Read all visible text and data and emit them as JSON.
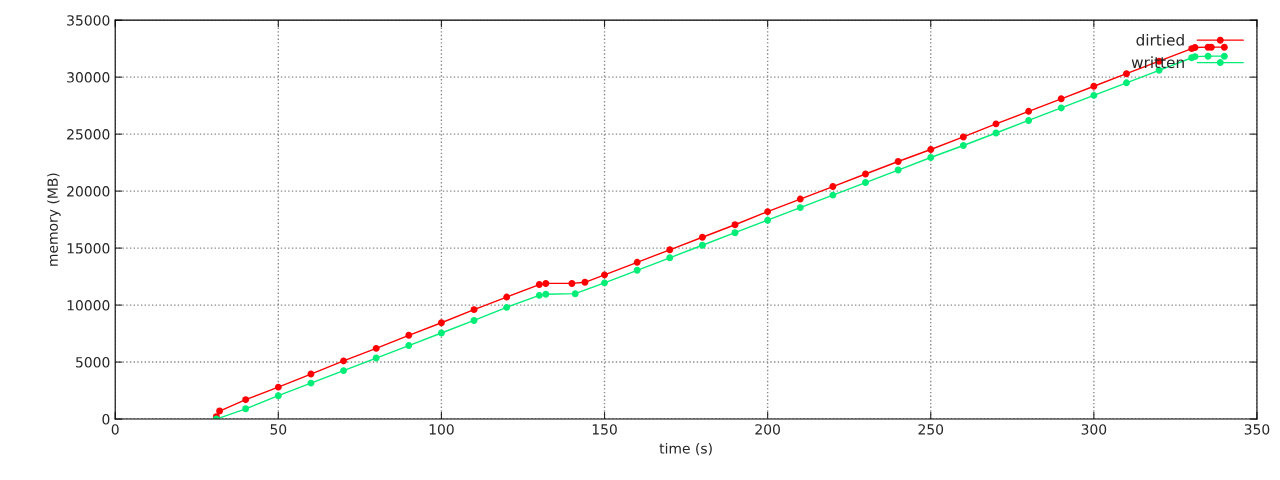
{
  "chart_data": {
    "type": "line",
    "xlabel": "time (s)",
    "ylabel": "memory (MB)",
    "xlim": [
      0,
      350
    ],
    "xticks": [
      0,
      50,
      100,
      150,
      200,
      250,
      300,
      350
    ],
    "ylim": [
      0,
      35000
    ],
    "yticks": [
      0,
      5000,
      10000,
      15000,
      20000,
      25000,
      30000,
      35000
    ],
    "grid": true,
    "legend": "top right",
    "marker": "circle",
    "line_style": "solid",
    "series": [
      {
        "name": "dirtied",
        "color": "#ff0000",
        "x": [
          31,
          32,
          40,
          50,
          60,
          70,
          80,
          90,
          100,
          110,
          120,
          130,
          132,
          140,
          144,
          150,
          160,
          170,
          180,
          190,
          200,
          210,
          220,
          230,
          240,
          250,
          260,
          270,
          280,
          290,
          300,
          310,
          320,
          330,
          331,
          335,
          336,
          340
        ],
        "values": [
          200,
          700,
          1700,
          2800,
          3950,
          5100,
          6200,
          7350,
          8450,
          9600,
          10700,
          11800,
          11900,
          11900,
          12000,
          12650,
          13750,
          14850,
          15950,
          17050,
          18200,
          19300,
          20400,
          21500,
          22600,
          23650,
          24750,
          25900,
          27000,
          28100,
          29200,
          30300,
          31400,
          32500,
          32600,
          32630,
          32630,
          32630
        ]
      },
      {
        "name": "written",
        "color": "#00ee77",
        "x": [
          31,
          40,
          50,
          60,
          70,
          80,
          90,
          100,
          110,
          120,
          130,
          132,
          141,
          150,
          160,
          170,
          180,
          190,
          200,
          210,
          220,
          230,
          240,
          250,
          260,
          270,
          280,
          290,
          300,
          310,
          320,
          330,
          331,
          335,
          340
        ],
        "values": [
          0,
          900,
          2050,
          3150,
          4250,
          5350,
          6450,
          7550,
          8650,
          9800,
          10850,
          10950,
          11000,
          11950,
          13050,
          14150,
          15250,
          16350,
          17450,
          18550,
          19650,
          20750,
          21850,
          22950,
          24000,
          25100,
          26200,
          27300,
          28400,
          29500,
          30600,
          31700,
          31800,
          31840,
          31840
        ]
      }
    ]
  }
}
